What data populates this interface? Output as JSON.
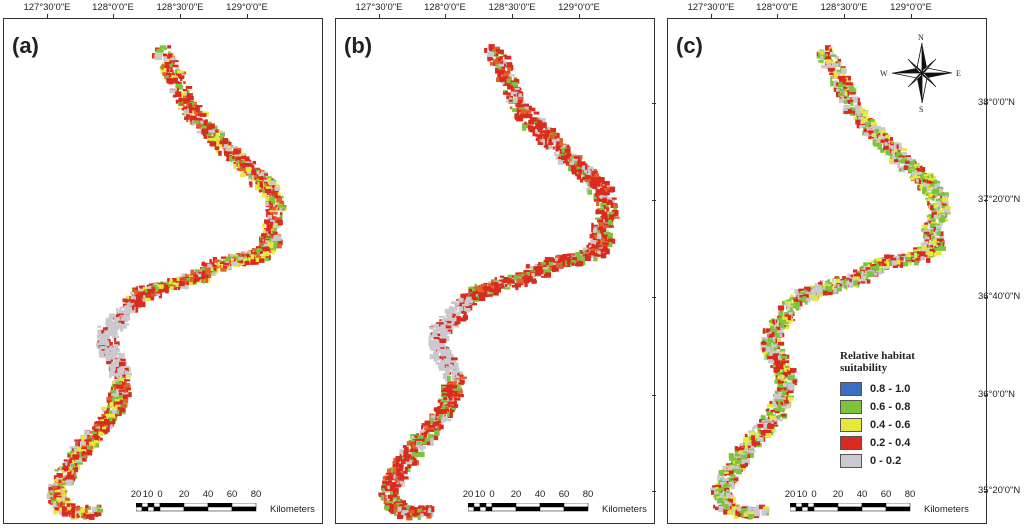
{
  "longitude_labels": [
    "127°30'0\"E",
    "128°0'0\"E",
    "128°30'0\"E",
    "129°0'0\"E"
  ],
  "latitude_labels": [
    "38°0'0\"N",
    "37°20'0\"N",
    "36°40'0\"N",
    "36°0'0\"N",
    "35°20'0\"N"
  ],
  "panels": [
    {
      "letter": "(a)"
    },
    {
      "letter": "(b)"
    },
    {
      "letter": "(c)"
    }
  ],
  "scalebar": {
    "numbers": [
      "20",
      "10",
      "0",
      "20",
      "40",
      "60",
      "80"
    ],
    "unit": "Kilometers"
  },
  "compass": {
    "north": "N",
    "south": "S",
    "east": "E",
    "west": "W"
  },
  "legend": {
    "title_line1": "Relative habitat",
    "title_line2": "suitability",
    "classes": [
      {
        "label": "0.8 - 1.0",
        "color": "#3a6fc4"
      },
      {
        "label": "0.6 - 0.8",
        "color": "#7cc43c"
      },
      {
        "label": "0.4 - 0.6",
        "color": "#e8e83a"
      },
      {
        "label": "0.2 - 0.4",
        "color": "#d92b1f"
      },
      {
        "label": "0 - 0.2",
        "color": "#c9c9cf"
      }
    ]
  },
  "colors": {
    "high": "#3a6fc4",
    "moderate_high": "#7cc43c",
    "moderate": "#e8e83a",
    "low": "#d92b1f",
    "very_low": "#c9c9cf",
    "orange_mix": "#e0622a"
  }
}
